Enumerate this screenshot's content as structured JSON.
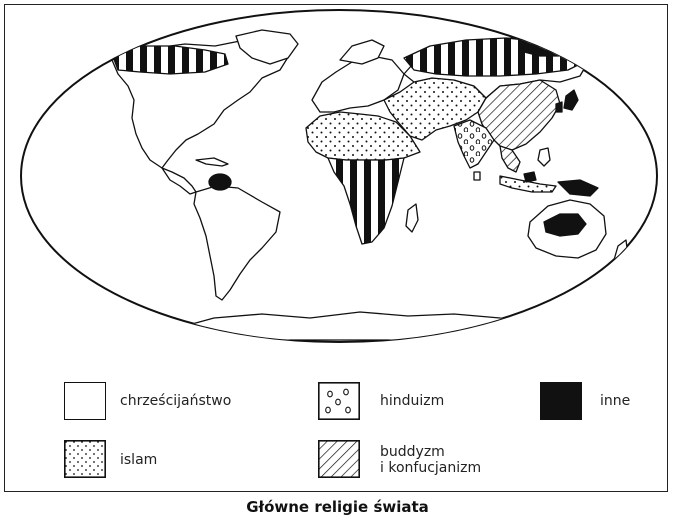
{
  "legend": {
    "christianity": "chrześcijaństwo",
    "islam": "islam",
    "hinduism": "hinduizm",
    "buddhism_line1": "buddyzm",
    "buddhism_line2": "i konfucjanizm",
    "other": "inne"
  },
  "caption": "Główne religie świata",
  "patterns": {
    "christianity": "blank",
    "islam": "dots",
    "hinduism": "small-circles",
    "buddhism_confucianism": "diagonal-hatch",
    "other": "solid-black"
  },
  "colors": {
    "ink": "#111111",
    "paper": "#ffffff"
  }
}
